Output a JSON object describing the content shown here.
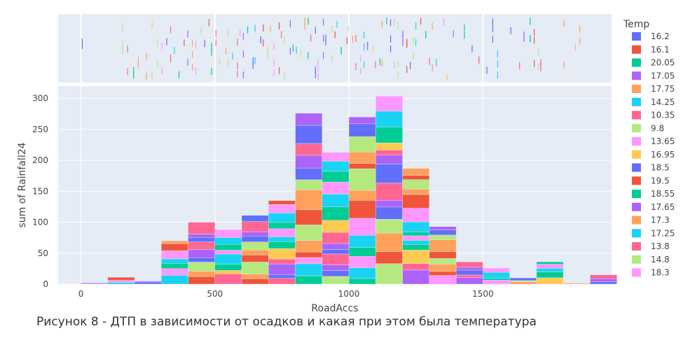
{
  "caption": "Рисунок 8 - ДТП в зависимости от осадков и какая при этом была температура",
  "colors": {
    "plot_background": "#e5ecf6",
    "grid": "#ffffff",
    "temp_palette": [
      "#636efa",
      "#ef553b",
      "#00cc96",
      "#ab63fa",
      "#ffa15a",
      "#19d3f3",
      "#ff6692",
      "#b6e880",
      "#ff97ff",
      "#fecb52"
    ]
  },
  "chart_data": {
    "type": "bar",
    "stacking": "stacked",
    "xlabel": "RoadAccs",
    "ylabel": "sum of Rainfall24",
    "xlim": [
      -85,
      1980
    ],
    "ylim": [
      0,
      320
    ],
    "x_ticks": [
      0,
      500,
      1000,
      1500
    ],
    "y_ticks": [
      0,
      50,
      100,
      150,
      200,
      250,
      300
    ],
    "bin_width": 100,
    "bins": [
      {
        "start": 0,
        "total": 2
      },
      {
        "start": 100,
        "total": 11
      },
      {
        "start": 200,
        "total": 5
      },
      {
        "start": 300,
        "total": 70
      },
      {
        "start": 400,
        "total": 100
      },
      {
        "start": 500,
        "total": 88
      },
      {
        "start": 600,
        "total": 111
      },
      {
        "start": 700,
        "total": 135
      },
      {
        "start": 800,
        "total": 276
      },
      {
        "start": 900,
        "total": 213
      },
      {
        "start": 1000,
        "total": 270
      },
      {
        "start": 1100,
        "total": 304
      },
      {
        "start": 1200,
        "total": 187
      },
      {
        "start": 1300,
        "total": 93
      },
      {
        "start": 1400,
        "total": 36
      },
      {
        "start": 1500,
        "total": 26
      },
      {
        "start": 1600,
        "total": 10
      },
      {
        "start": 1700,
        "total": 36
      },
      {
        "start": 1800,
        "total": 2
      },
      {
        "start": 1900,
        "total": 15
      }
    ],
    "legend": {
      "title": "Temp",
      "placement": "right",
      "entries": [
        "16.2",
        "16.1",
        "20.05",
        "17.05",
        "17.75",
        "14.25",
        "10.35",
        "9.8",
        "13.65",
        "16.95",
        "18.5",
        "19.5",
        "18.55",
        "17.65",
        "17.3",
        "17.25",
        "13.8",
        "14.8",
        "18.3"
      ]
    },
    "marginal": {
      "type": "rug",
      "grid_x": [
        0,
        500,
        1000,
        1500
      ],
      "rugs": [
        {
          "x": 10,
          "temp": "18.5"
        },
        {
          "x": 155,
          "temp": "14.8"
        },
        {
          "x": 170,
          "temp": "13.8"
        },
        {
          "x": 195,
          "temp": "20.05"
        },
        {
          "x": 215,
          "temp": "17.75"
        },
        {
          "x": 240,
          "temp": "17.3"
        },
        {
          "x": 262,
          "temp": "16.95"
        },
        {
          "x": 285,
          "temp": "9.8"
        },
        {
          "x": 300,
          "temp": "13.65"
        },
        {
          "x": 318,
          "temp": "18.5"
        },
        {
          "x": 335,
          "temp": "10.35"
        },
        {
          "x": 352,
          "temp": "14.25"
        },
        {
          "x": 368,
          "temp": "20.05"
        },
        {
          "x": 385,
          "temp": "16.1"
        },
        {
          "x": 402,
          "temp": "17.05"
        },
        {
          "x": 418,
          "temp": "17.75"
        },
        {
          "x": 432,
          "temp": "18.3"
        },
        {
          "x": 448,
          "temp": "14.8"
        },
        {
          "x": 462,
          "temp": "16.2"
        },
        {
          "x": 478,
          "temp": "19.5"
        },
        {
          "x": 492,
          "temp": "18.55"
        },
        {
          "x": 508,
          "temp": "13.8"
        },
        {
          "x": 522,
          "temp": "16.95"
        },
        {
          "x": 538,
          "temp": "17.3"
        },
        {
          "x": 552,
          "temp": "9.8"
        },
        {
          "x": 566,
          "temp": "14.25"
        },
        {
          "x": 580,
          "temp": "10.35"
        },
        {
          "x": 595,
          "temp": "13.65"
        },
        {
          "x": 610,
          "temp": "17.65"
        },
        {
          "x": 624,
          "temp": "20.05"
        },
        {
          "x": 638,
          "temp": "16.2"
        },
        {
          "x": 652,
          "temp": "17.25"
        },
        {
          "x": 666,
          "temp": "18.5"
        },
        {
          "x": 680,
          "temp": "16.1"
        },
        {
          "x": 694,
          "temp": "14.8"
        },
        {
          "x": 708,
          "temp": "17.75"
        },
        {
          "x": 722,
          "temp": "18.3"
        },
        {
          "x": 736,
          "temp": "19.5"
        },
        {
          "x": 750,
          "temp": "13.8"
        },
        {
          "x": 764,
          "temp": "9.8"
        },
        {
          "x": 778,
          "temp": "17.05"
        },
        {
          "x": 792,
          "temp": "20.05"
        },
        {
          "x": 806,
          "temp": "14.25"
        },
        {
          "x": 820,
          "temp": "16.95"
        },
        {
          "x": 834,
          "temp": "17.3"
        },
        {
          "x": 848,
          "temp": "18.55"
        },
        {
          "x": 862,
          "temp": "10.35"
        },
        {
          "x": 876,
          "temp": "16.2"
        },
        {
          "x": 890,
          "temp": "13.65"
        },
        {
          "x": 904,
          "temp": "17.65"
        },
        {
          "x": 918,
          "temp": "18.5"
        },
        {
          "x": 932,
          "temp": "14.8"
        },
        {
          "x": 946,
          "temp": "19.5"
        },
        {
          "x": 960,
          "temp": "17.25"
        },
        {
          "x": 974,
          "temp": "20.05"
        },
        {
          "x": 988,
          "temp": "16.1"
        },
        {
          "x": 1002,
          "temp": "9.8"
        },
        {
          "x": 1016,
          "temp": "17.75"
        },
        {
          "x": 1030,
          "temp": "13.8"
        },
        {
          "x": 1044,
          "temp": "18.3"
        },
        {
          "x": 1058,
          "temp": "14.25"
        },
        {
          "x": 1072,
          "temp": "17.05"
        },
        {
          "x": 1086,
          "temp": "16.95"
        },
        {
          "x": 1100,
          "temp": "10.35"
        },
        {
          "x": 1114,
          "temp": "20.05"
        },
        {
          "x": 1128,
          "temp": "17.3"
        },
        {
          "x": 1142,
          "temp": "18.55"
        },
        {
          "x": 1156,
          "temp": "16.2"
        },
        {
          "x": 1170,
          "temp": "13.65"
        },
        {
          "x": 1184,
          "temp": "14.8"
        },
        {
          "x": 1198,
          "temp": "17.65"
        },
        {
          "x": 1212,
          "temp": "19.5"
        },
        {
          "x": 1226,
          "temp": "18.5"
        },
        {
          "x": 1240,
          "temp": "9.8"
        },
        {
          "x": 1254,
          "temp": "17.25"
        },
        {
          "x": 1268,
          "temp": "16.1"
        },
        {
          "x": 1282,
          "temp": "20.05"
        },
        {
          "x": 1296,
          "temp": "13.8"
        },
        {
          "x": 1310,
          "temp": "17.75"
        },
        {
          "x": 1330,
          "temp": "14.25"
        },
        {
          "x": 1350,
          "temp": "18.3"
        },
        {
          "x": 1370,
          "temp": "16.95"
        },
        {
          "x": 1395,
          "temp": "17.05"
        },
        {
          "x": 1430,
          "temp": "20.05"
        },
        {
          "x": 1460,
          "temp": "16.2"
        },
        {
          "x": 1490,
          "temp": "10.35"
        },
        {
          "x": 1510,
          "temp": "16.2"
        },
        {
          "x": 1535,
          "temp": "18.5"
        },
        {
          "x": 1555,
          "temp": "14.25"
        },
        {
          "x": 1600,
          "temp": "18.5"
        },
        {
          "x": 1635,
          "temp": "13.8"
        },
        {
          "x": 1655,
          "temp": "17.05"
        },
        {
          "x": 1672,
          "temp": "20.05"
        },
        {
          "x": 1688,
          "temp": "16.1"
        },
        {
          "x": 1705,
          "temp": "14.8"
        },
        {
          "x": 1718,
          "temp": "10.35"
        },
        {
          "x": 1800,
          "temp": "17.75"
        },
        {
          "x": 1840,
          "temp": "18.3"
        },
        {
          "x": 1862,
          "temp": "17.3"
        }
      ]
    }
  }
}
